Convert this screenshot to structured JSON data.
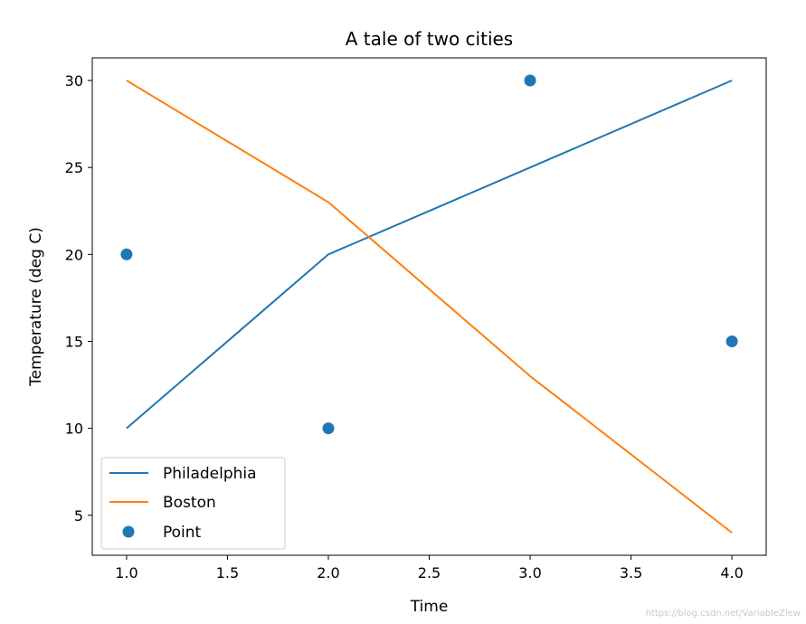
{
  "chart_data": {
    "type": "line",
    "title": "A tale of two cities",
    "xlabel": "Time",
    "ylabel": "Temperature (deg C)",
    "xlim": [
      0.83,
      4.17
    ],
    "ylim": [
      2.7,
      31.3
    ],
    "xticks": [
      1.0,
      1.5,
      2.0,
      2.5,
      3.0,
      3.5,
      4.0
    ],
    "xtick_labels": [
      "1.0",
      "1.5",
      "2.0",
      "2.5",
      "3.0",
      "3.5",
      "4.0"
    ],
    "yticks": [
      5,
      10,
      15,
      20,
      25,
      30
    ],
    "ytick_labels": [
      "5",
      "10",
      "15",
      "20",
      "25",
      "30"
    ],
    "grid": false,
    "legend_position": "lower-left",
    "series": [
      {
        "name": "Philadelphia",
        "kind": "line",
        "color": "#1f77b4",
        "x": [
          1,
          2,
          3,
          4
        ],
        "y": [
          10,
          20,
          25,
          30
        ]
      },
      {
        "name": "Boston",
        "kind": "line",
        "color": "#ff7f0e",
        "x": [
          1,
          2,
          3,
          4
        ],
        "y": [
          30,
          23,
          13,
          4
        ]
      },
      {
        "name": "Point",
        "kind": "scatter",
        "color": "#1f77b4",
        "x": [
          1,
          2,
          3,
          4
        ],
        "y": [
          20,
          10,
          30,
          15
        ]
      }
    ]
  },
  "watermark": "https://blog.csdn.net/VariableZlew"
}
